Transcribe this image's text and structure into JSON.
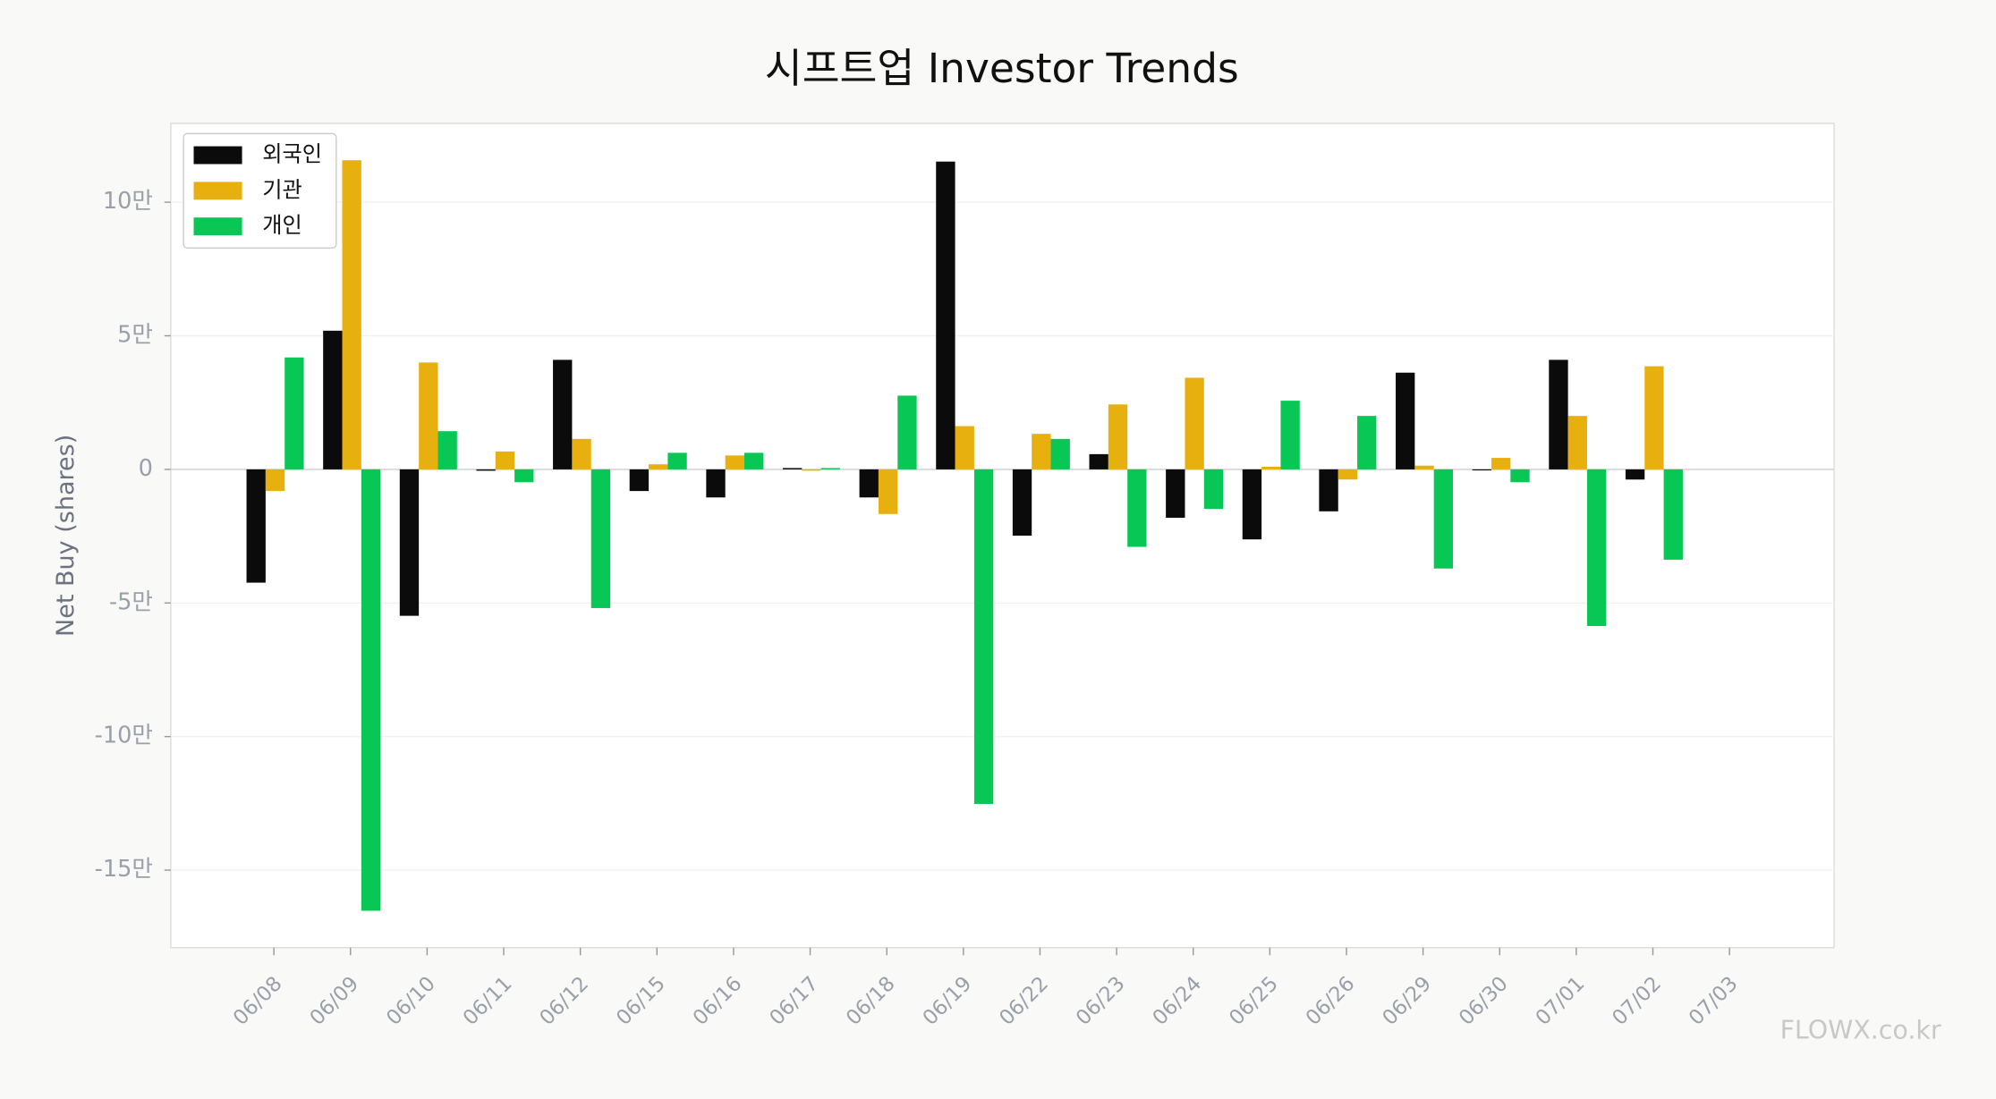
{
  "chart_data": {
    "type": "bar",
    "title": "시프트업 Investor Trends",
    "y_label": "Net Buy (shares)",
    "watermark": "FLOWX.co.kr",
    "categories": [
      "06/08",
      "06/09",
      "06/10",
      "06/11",
      "06/12",
      "06/15",
      "06/16",
      "06/17",
      "06/18",
      "06/19",
      "06/22",
      "06/23",
      "06/24",
      "06/25",
      "06/26",
      "06/29",
      "06/30",
      "07/01",
      "07/02",
      "07/03"
    ],
    "series": [
      {
        "name": "외국인",
        "color": "#0b0b0b",
        "values": [
          -42400,
          51900,
          -54800,
          -500,
          41000,
          -8100,
          -10500,
          500,
          -10500,
          115200,
          -24800,
          5700,
          -18100,
          -26200,
          -15700,
          36200,
          -300,
          41000,
          -3800,
          null
        ]
      },
      {
        "name": "기관",
        "color": "#e8b00f",
        "values": [
          -8100,
          115700,
          40000,
          6700,
          11400,
          1900,
          5200,
          -500,
          -16700,
          16200,
          13300,
          24300,
          34300,
          1000,
          -3800,
          1400,
          4300,
          20000,
          38600,
          null
        ]
      },
      {
        "name": "개인",
        "color": "#08c754",
        "values": [
          41900,
          -165200,
          14300,
          -4800,
          -51900,
          6200,
          6200,
          500,
          27600,
          -125200,
          11400,
          -29000,
          -14800,
          25700,
          20000,
          -37100,
          -4800,
          -58600,
          -33800,
          null
        ]
      }
    ],
    "ylim": [
      -179000,
      129500
    ],
    "yticks": [
      {
        "value": -150000,
        "label": "-15만"
      },
      {
        "value": -100000,
        "label": "-10만"
      },
      {
        "value": -50000,
        "label": "-5만"
      },
      0,
      {
        "value": 50000,
        "label": "5만"
      },
      {
        "value": 100000,
        "label": "10만"
      }
    ],
    "grid": true,
    "legend": "upper-left"
  }
}
